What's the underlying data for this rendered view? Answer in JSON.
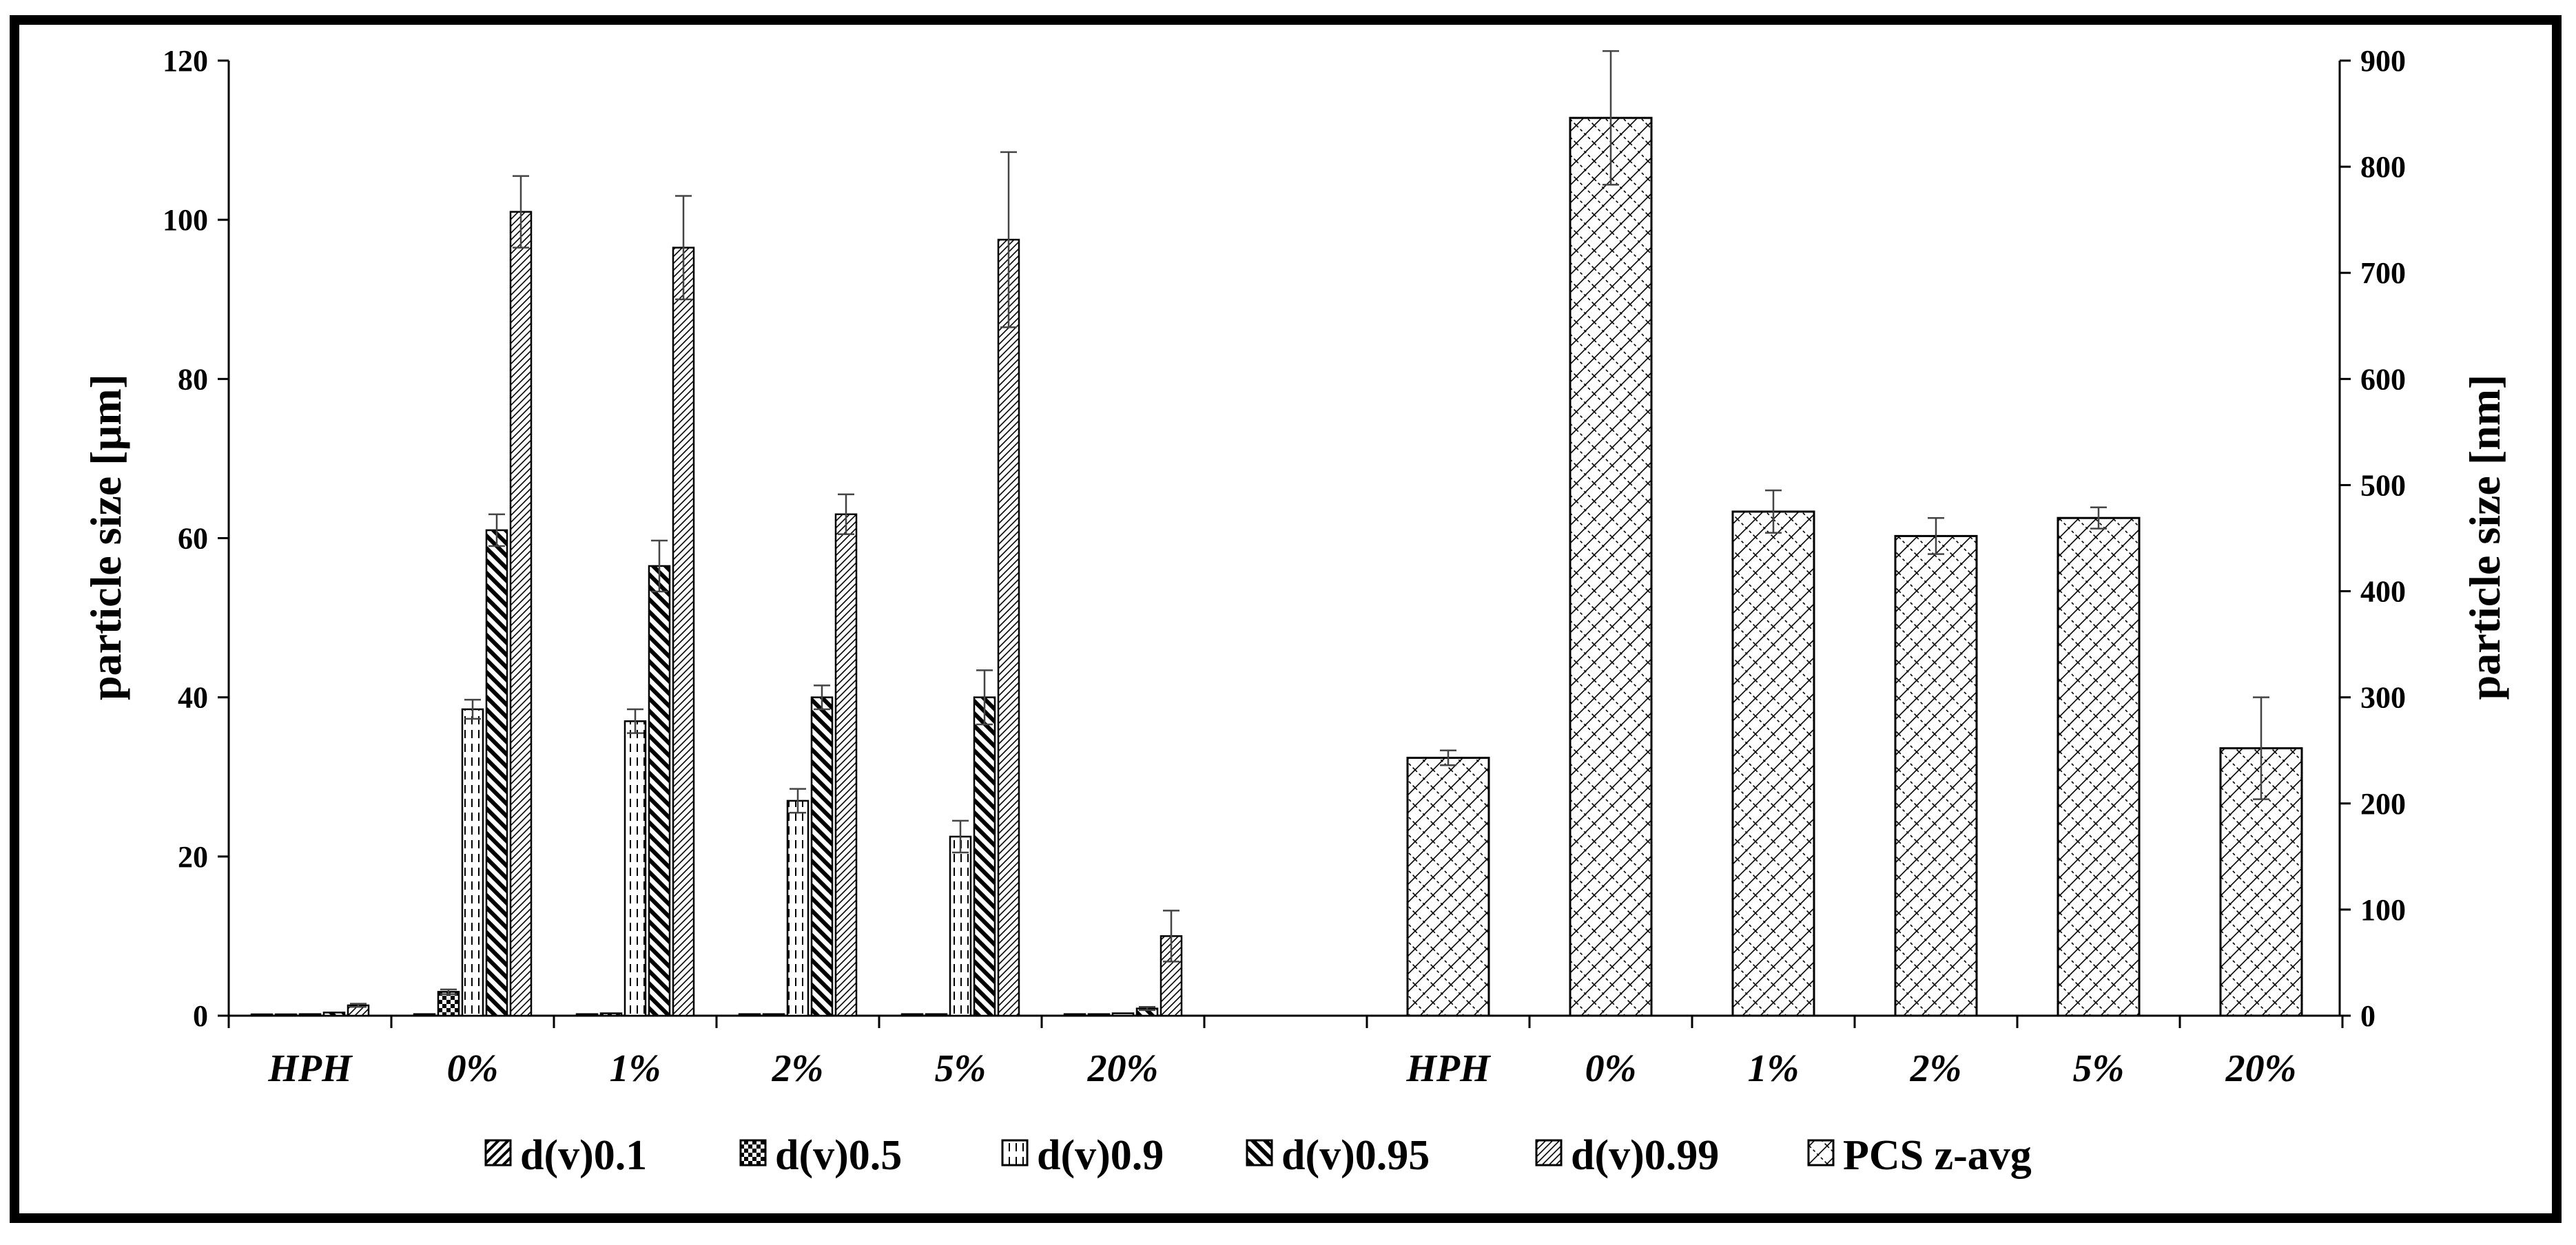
{
  "chart_data": {
    "type": "bar",
    "title": "",
    "xlabel": "",
    "left_axis": {
      "label": "particle size [µm]",
      "ylim": [
        0,
        120
      ],
      "ticks": [
        0,
        20,
        40,
        60,
        80,
        100,
        120
      ]
    },
    "right_axis": {
      "label": "particle size [nm]",
      "ylim": [
        0,
        900
      ],
      "ticks": [
        0,
        100,
        200,
        300,
        400,
        500,
        600,
        700,
        800,
        900
      ]
    },
    "groups_left": [
      "HPH",
      "0%",
      "1%",
      "2%",
      "5%",
      "20%"
    ],
    "groups_right": [
      "HPH",
      "0%",
      "1%",
      "2%",
      "5%",
      "20%"
    ],
    "series": [
      {
        "name": "d(v)0.1",
        "axis": "left",
        "pattern": "fwd",
        "values": [
          0.1,
          0.2,
          0.2,
          0.2,
          0.2,
          0.2
        ],
        "errors": [
          0,
          0,
          0,
          0,
          0,
          0
        ]
      },
      {
        "name": "d(v)0.5",
        "axis": "left",
        "pattern": "check",
        "values": [
          0.1,
          3.0,
          0.3,
          0.2,
          0.2,
          0.2
        ],
        "errors": [
          0,
          0.3,
          0,
          0,
          0,
          0
        ]
      },
      {
        "name": "d(v)0.9",
        "axis": "left",
        "pattern": "vert",
        "values": [
          0.2,
          38.5,
          37.0,
          27.0,
          22.5,
          0.3
        ],
        "errors": [
          0,
          1.2,
          1.5,
          1.5,
          2.0,
          0
        ]
      },
      {
        "name": "d(v)0.95",
        "axis": "left",
        "pattern": "back",
        "values": [
          0.4,
          61.0,
          56.5,
          40.0,
          40.0,
          0.9
        ],
        "errors": [
          0,
          2.0,
          3.2,
          1.5,
          3.4,
          0.2
        ]
      },
      {
        "name": "d(v)0.99",
        "axis": "left",
        "pattern": "diagdense",
        "values": [
          1.3,
          101.0,
          96.5,
          63.0,
          97.5,
          10.0
        ],
        "errors": [
          0.2,
          4.5,
          6.5,
          2.5,
          11.0,
          3.2
        ]
      },
      {
        "name": "PCS z-avg",
        "axis": "right",
        "pattern": "diamond",
        "values": [
          243,
          846,
          475,
          452,
          469,
          252
        ],
        "errors": [
          7,
          63,
          20,
          17,
          10,
          48
        ]
      }
    ],
    "legend_position": "bottom",
    "grid": false
  }
}
